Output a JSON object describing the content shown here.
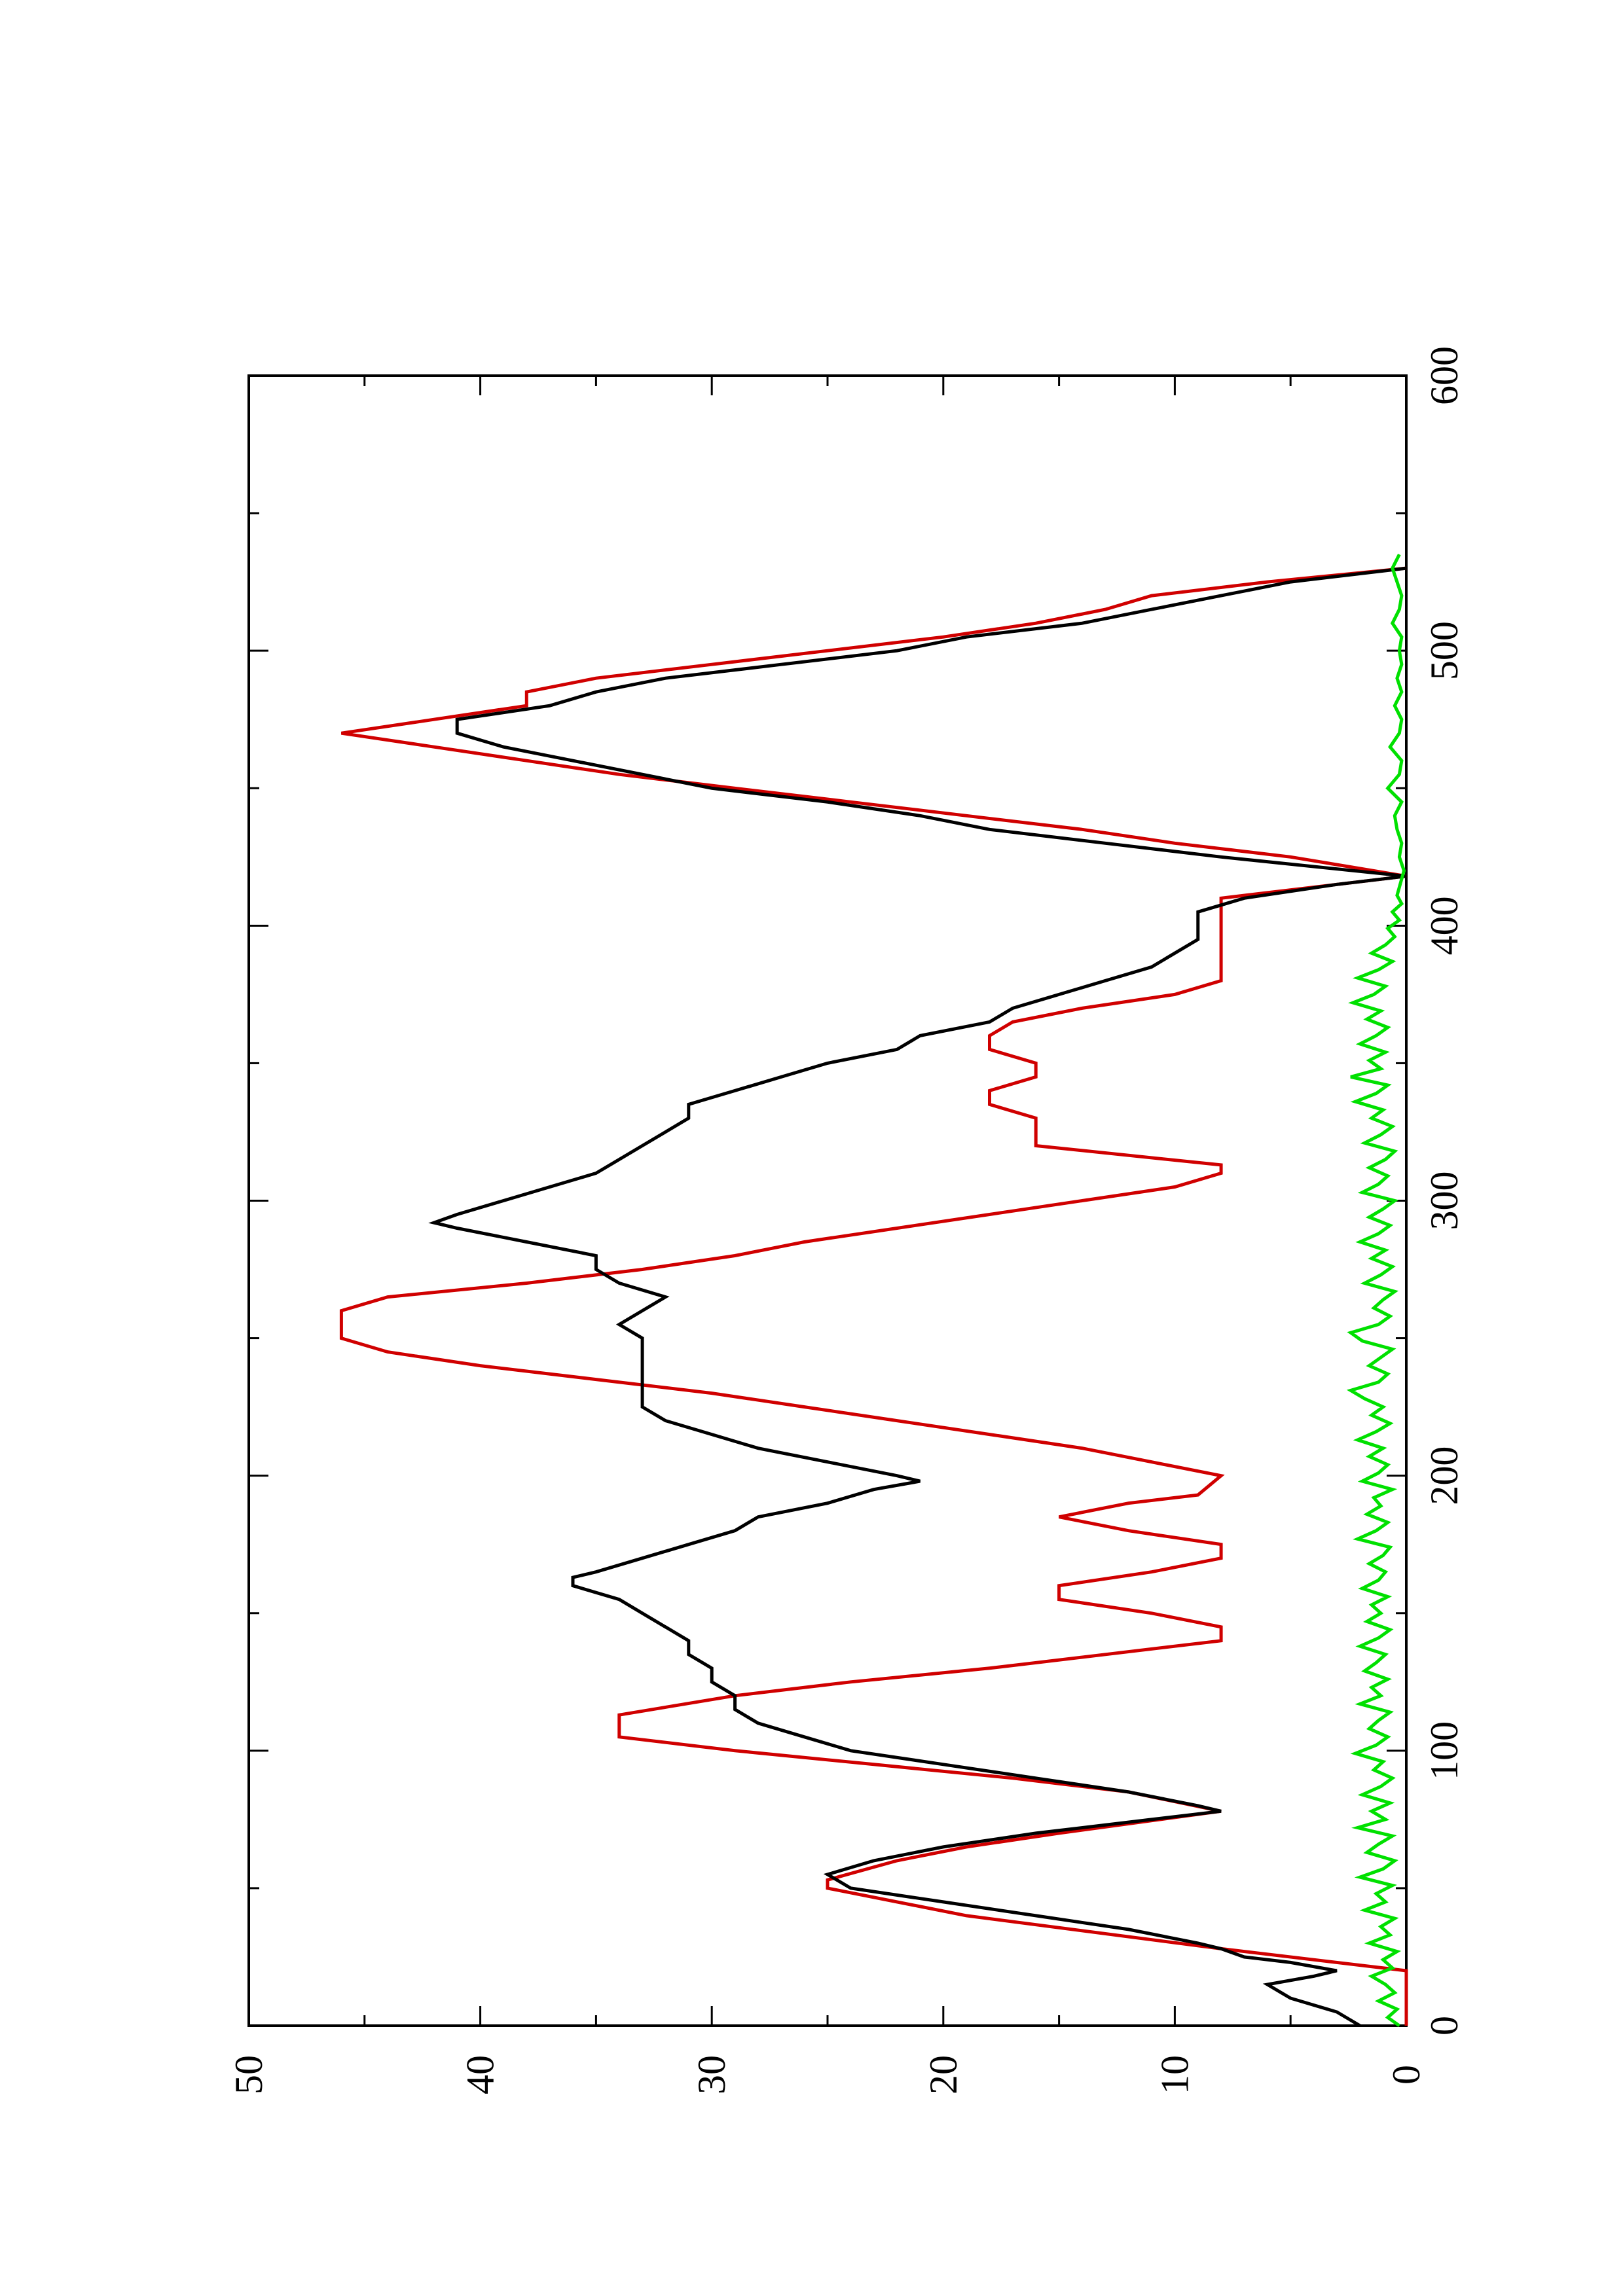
{
  "chart_data": {
    "type": "line",
    "orientation": "rotated-90-ccw",
    "title": "",
    "xlabel": "",
    "ylabel": "",
    "xlim": [
      0,
      600
    ],
    "ylim": [
      0,
      50
    ],
    "x_ticks": [
      "0",
      "100",
      "200",
      "300",
      "400",
      "500",
      "600"
    ],
    "y_ticks": [
      "0",
      "10",
      "20",
      "30",
      "40",
      "50"
    ],
    "grid": false,
    "legend": "none",
    "series": [
      {
        "color": "#d00000",
        "step": true,
        "x": [
          0,
          20,
          28,
          40,
          50,
          53,
          60,
          65,
          70,
          78,
          85,
          90,
          95,
          100,
          105,
          110,
          113,
          120,
          125,
          130,
          135,
          140,
          145,
          150,
          155,
          160,
          165,
          170,
          175,
          180,
          185,
          190,
          193,
          200,
          205,
          210,
          215,
          220,
          225,
          230,
          235,
          240,
          245,
          250,
          255,
          260,
          265,
          270,
          275,
          280,
          285,
          290,
          295,
          300,
          305,
          310,
          313,
          320,
          330,
          335,
          340,
          345,
          350,
          355,
          360,
          365,
          370,
          375,
          380,
          390,
          400,
          410,
          418,
          425,
          430,
          435,
          440,
          445,
          450,
          455,
          460,
          465,
          470,
          475,
          480,
          485,
          490,
          495,
          500,
          505,
          510,
          515,
          520,
          525,
          530
        ],
        "y": [
          0,
          0,
          8,
          19,
          25,
          25,
          22,
          19,
          15,
          8,
          12,
          17,
          23,
          29,
          34,
          34,
          34,
          29,
          24,
          18,
          13,
          8,
          8,
          11,
          15,
          15,
          11,
          8,
          8,
          12,
          15,
          12,
          9,
          8,
          11,
          14,
          18,
          22,
          26,
          30,
          35,
          40,
          44,
          46,
          46,
          46,
          44,
          38,
          33,
          29,
          26,
          22,
          18,
          14,
          10,
          8,
          8,
          16,
          16,
          18,
          18,
          16,
          16,
          18,
          18,
          17,
          14,
          10,
          8,
          8,
          8,
          8,
          0,
          5,
          10,
          14,
          19,
          24,
          29,
          34,
          38,
          42,
          46,
          42,
          38,
          38,
          35,
          30,
          25,
          20,
          16,
          13,
          11,
          6,
          0
        ]
      },
      {
        "color": "#000000",
        "step": false,
        "x": [
          0,
          5,
          10,
          15,
          18,
          20,
          23,
          25,
          28,
          30,
          35,
          40,
          45,
          50,
          55,
          60,
          65,
          70,
          75,
          78,
          80,
          85,
          90,
          95,
          100,
          105,
          110,
          115,
          120,
          125,
          130,
          135,
          140,
          145,
          150,
          155,
          160,
          163,
          165,
          170,
          175,
          180,
          185,
          190,
          195,
          198,
          200,
          205,
          210,
          215,
          220,
          225,
          230,
          235,
          240,
          245,
          250,
          255,
          260,
          265,
          270,
          275,
          280,
          285,
          290,
          292,
          295,
          300,
          305,
          310,
          315,
          320,
          325,
          330,
          335,
          340,
          345,
          350,
          355,
          360,
          365,
          370,
          375,
          380,
          385,
          390,
          395,
          400,
          405,
          410,
          415,
          418,
          425,
          430,
          435,
          440,
          445,
          450,
          455,
          460,
          465,
          470,
          475,
          480,
          485,
          490,
          495,
          500,
          505,
          510,
          515,
          520,
          525,
          530
        ],
        "y": [
          2,
          3,
          5,
          6,
          4,
          3,
          5,
          7,
          8,
          9,
          12,
          16,
          20,
          24,
          25,
          23,
          20,
          16,
          11,
          8,
          9,
          12,
          16,
          20,
          24,
          26,
          28,
          29,
          29,
          30,
          30,
          31,
          31,
          32,
          33,
          34,
          36,
          36,
          35,
          33,
          31,
          29,
          28,
          25,
          23,
          21,
          22,
          25,
          28,
          30,
          32,
          33,
          33,
          33,
          33,
          33,
          33,
          34,
          33,
          32,
          34,
          35,
          35,
          38,
          41,
          42,
          41,
          39,
          37,
          35,
          34,
          33,
          32,
          31,
          31,
          29,
          27,
          25,
          22,
          21,
          18,
          17,
          15,
          13,
          11,
          10,
          9,
          9,
          9,
          7,
          3,
          0,
          8,
          13,
          18,
          21,
          25,
          30,
          33,
          36,
          39,
          41,
          41,
          37,
          35,
          32,
          27,
          22,
          19,
          14,
          11,
          8,
          5,
          0
        ]
      },
      {
        "color": "#00e000",
        "step": false,
        "x": [
          0,
          3,
          6,
          9,
          12,
          15,
          18,
          21,
          24,
          27,
          30,
          33,
          36,
          39,
          42,
          45,
          48,
          51,
          54,
          57,
          60,
          63,
          66,
          69,
          72,
          75,
          78,
          81,
          84,
          87,
          90,
          93,
          96,
          99,
          102,
          105,
          108,
          111,
          114,
          117,
          120,
          123,
          126,
          129,
          132,
          135,
          138,
          141,
          144,
          147,
          150,
          153,
          156,
          159,
          162,
          165,
          168,
          171,
          174,
          177,
          180,
          183,
          186,
          189,
          192,
          195,
          198,
          201,
          204,
          207,
          210,
          213,
          216,
          219,
          222,
          225,
          228,
          231,
          234,
          237,
          240,
          243,
          246,
          249,
          252,
          255,
          258,
          261,
          264,
          267,
          270,
          273,
          276,
          279,
          282,
          285,
          288,
          291,
          294,
          297,
          300,
          303,
          306,
          309,
          312,
          315,
          318,
          321,
          324,
          327,
          330,
          333,
          336,
          339,
          342,
          345,
          348,
          351,
          354,
          357,
          360,
          363,
          366,
          369,
          372,
          375,
          378,
          381,
          384,
          387,
          390,
          393,
          396,
          399,
          402,
          405,
          408,
          411,
          414,
          417,
          420,
          425,
          430,
          435,
          440,
          445,
          450,
          455,
          460,
          465,
          470,
          475,
          480,
          485,
          490,
          495,
          500,
          505,
          510,
          515,
          520,
          525,
          530,
          535
        ],
        "y": [
          0.3,
          0.8,
          0.4,
          1.2,
          0.5,
          0.9,
          1.5,
          0.6,
          1.0,
          0.4,
          1.6,
          0.7,
          1.1,
          0.5,
          1.8,
          0.9,
          1.3,
          0.6,
          2.0,
          1.0,
          0.5,
          1.7,
          1.2,
          0.6,
          2.1,
          0.9,
          1.5,
          0.7,
          1.9,
          1.1,
          0.6,
          1.4,
          1.0,
          2.2,
          1.3,
          0.8,
          1.6,
          1.2,
          0.7,
          2.0,
          1.1,
          1.5,
          0.8,
          1.8,
          1.3,
          0.9,
          2.0,
          1.2,
          0.7,
          1.7,
          1.1,
          1.5,
          0.8,
          1.9,
          1.2,
          0.9,
          1.6,
          1.0,
          0.7,
          2.1,
          1.3,
          0.8,
          1.7,
          1.1,
          1.4,
          0.6,
          1.9,
          1.2,
          0.8,
          1.6,
          1.0,
          2.1,
          1.3,
          0.7,
          1.5,
          1.0,
          1.8,
          2.4,
          1.2,
          0.8,
          1.6,
          1.1,
          0.6,
          1.9,
          2.4,
          1.2,
          0.7,
          1.4,
          1.0,
          0.5,
          1.8,
          1.1,
          0.6,
          1.5,
          0.9,
          2.0,
          1.2,
          0.7,
          1.6,
          1.0,
          0.5,
          1.9,
          1.2,
          0.8,
          1.6,
          0.9,
          0.5,
          1.8,
          1.1,
          0.6,
          1.5,
          1.0,
          2.2,
          1.3,
          0.8,
          2.4,
          1.1,
          1.6,
          0.9,
          2.0,
          1.3,
          0.8,
          1.7,
          1.1,
          2.3,
          1.4,
          0.9,
          2.1,
          1.2,
          0.6,
          1.5,
          0.9,
          0.5,
          0.8,
          0.3,
          0.6,
          0.2,
          0.4,
          0.3,
          0.2,
          0.1,
          0.3,
          0.2,
          0.4,
          0.5,
          0.2,
          0.8,
          0.3,
          0.2,
          0.7,
          0.3,
          0.2,
          0.5,
          0.2,
          0.4,
          0.2,
          0.3,
          0.2,
          0.6,
          0.3,
          0.2,
          0.4,
          0.6,
          0.3
        ]
      }
    ]
  }
}
